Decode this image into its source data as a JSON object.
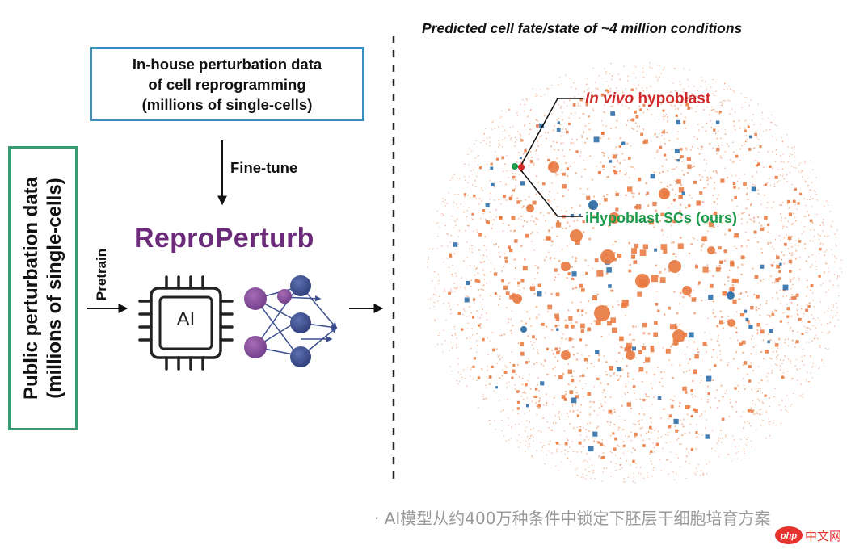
{
  "inhouse_box": {
    "lines": [
      "In-house perturbation data",
      "of cell reprogramming",
      "(millions of single-cells)"
    ]
  },
  "public_box": {
    "lines": [
      "Public perturbation data",
      "(millions of single-cells)"
    ]
  },
  "labels": {
    "finetune": "Fine-tune",
    "pretrain": "Pretrain",
    "model_name": "ReproPerturb",
    "chip": "AI"
  },
  "right_panel": {
    "title": "Predicted cell fate/state of ~4 million conditions",
    "invivo_italic": "In vivo",
    "invivo_rest": " hypoblast",
    "ihypo": "iHypoblast SCs (ours)"
  },
  "caption": "· AI模型从约400万种条件中锁定下胚层干细胞培育方案",
  "watermark": {
    "text": "中文网",
    "prefix": "php"
  },
  "colors": {
    "inhouse_border": "#3b8fb8",
    "public_border": "#3a9a73",
    "model_name": "#6b2a7a",
    "dot_orange": "#e8773d",
    "dot_blue": "#2f6fa8",
    "invivo_red": "#d02a2a",
    "ihypo_green": "#1a9a4a",
    "node_purple": "#8e4b9c",
    "node_blue": "#3c4e8e"
  }
}
